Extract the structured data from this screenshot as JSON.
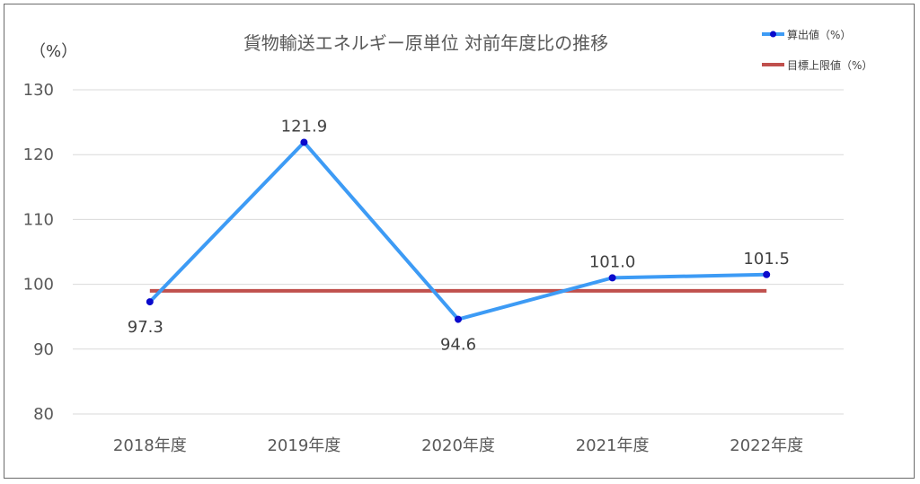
{
  "chart_data": {
    "type": "line",
    "title": "貨物輸送エネルギー原単位 対前年度比の推移",
    "ylabel": "（%）",
    "xlabel": "",
    "categories": [
      "2018年度",
      "2019年度",
      "2020年度",
      "2021年度",
      "2022年度"
    ],
    "yticks": [
      "130",
      "120",
      "110",
      "100",
      "90",
      "80"
    ],
    "ylim": [
      80,
      130
    ],
    "grid": true,
    "legend_position": "top-right",
    "series": [
      {
        "name": "算出値（%）",
        "values": [
          97.3,
          121.9,
          94.6,
          101.0,
          101.5
        ],
        "labels": [
          "97.3",
          "121.9",
          "94.6",
          "101.0",
          "101.5"
        ],
        "color": "#3D9BF5",
        "marker_color": "#0A0ACC"
      },
      {
        "name": "目標上限値（%）",
        "values": [
          99,
          99,
          99,
          99,
          99
        ],
        "color": "#C0504D"
      }
    ]
  }
}
